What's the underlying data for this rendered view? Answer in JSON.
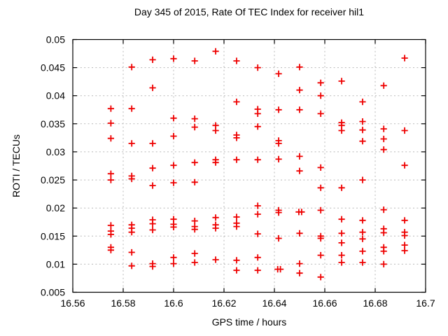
{
  "chart_data": {
    "type": "scatter",
    "title": "Day 345 of 2015, Rate Of TEC Index for receiver hil1",
    "xlabel": "GPS time / hours",
    "ylabel": "ROTI / TECUs",
    "xlim": [
      16.56,
      16.7
    ],
    "ylim": [
      0.005,
      0.05
    ],
    "grid": true,
    "legend": "none",
    "marker": "plus",
    "colors": {
      "marker": "#ee0000",
      "grid": "#b8b8b8",
      "axis": "#000000",
      "background": "#ffffff"
    },
    "xticks": [
      {
        "v": 16.56,
        "label": "16.56"
      },
      {
        "v": 16.58,
        "label": "16.58"
      },
      {
        "v": 16.6,
        "label": "16.6"
      },
      {
        "v": 16.62,
        "label": "16.62"
      },
      {
        "v": 16.64,
        "label": "16.64"
      },
      {
        "v": 16.66,
        "label": "16.66"
      },
      {
        "v": 16.68,
        "label": "16.68"
      },
      {
        "v": 16.7,
        "label": "16.7"
      }
    ],
    "yticks": [
      {
        "v": 0.005,
        "label": "0.005"
      },
      {
        "v": 0.01,
        "label": "0.01"
      },
      {
        "v": 0.015,
        "label": "0.015"
      },
      {
        "v": 0.02,
        "label": "0.02"
      },
      {
        "v": 0.025,
        "label": "0.025"
      },
      {
        "v": 0.03,
        "label": "0.03"
      },
      {
        "v": 0.035,
        "label": "0.035"
      },
      {
        "v": 0.04,
        "label": "0.04"
      },
      {
        "v": 0.045,
        "label": "0.045"
      },
      {
        "v": 0.05,
        "label": "0.05"
      }
    ],
    "series": [
      {
        "name": "ROTI",
        "points": [
          [
            16.5751,
            0.0377
          ],
          [
            16.5751,
            0.0351
          ],
          [
            16.5751,
            0.0324
          ],
          [
            16.5751,
            0.0261
          ],
          [
            16.5751,
            0.025
          ],
          [
            16.5751,
            0.0169
          ],
          [
            16.5751,
            0.0159
          ],
          [
            16.5751,
            0.0153
          ],
          [
            16.5751,
            0.013
          ],
          [
            16.5751,
            0.0125
          ],
          [
            16.5834,
            0.0451
          ],
          [
            16.5834,
            0.0377
          ],
          [
            16.5834,
            0.0315
          ],
          [
            16.5834,
            0.0257
          ],
          [
            16.5834,
            0.0252
          ],
          [
            16.5834,
            0.017
          ],
          [
            16.5834,
            0.0164
          ],
          [
            16.5834,
            0.0157
          ],
          [
            16.5834,
            0.0121
          ],
          [
            16.5834,
            0.0097
          ],
          [
            16.5917,
            0.0464
          ],
          [
            16.5917,
            0.0414
          ],
          [
            16.5917,
            0.0315
          ],
          [
            16.5917,
            0.0271
          ],
          [
            16.5917,
            0.024
          ],
          [
            16.5917,
            0.0179
          ],
          [
            16.5917,
            0.0172
          ],
          [
            16.5917,
            0.0161
          ],
          [
            16.5917,
            0.0101
          ],
          [
            16.5917,
            0.0096
          ],
          [
            16.6,
            0.0466
          ],
          [
            16.6,
            0.036
          ],
          [
            16.6,
            0.0328
          ],
          [
            16.6,
            0.0276
          ],
          [
            16.6,
            0.0245
          ],
          [
            16.6,
            0.018
          ],
          [
            16.6,
            0.0171
          ],
          [
            16.6,
            0.0166
          ],
          [
            16.6,
            0.0112
          ],
          [
            16.6,
            0.0101
          ],
          [
            16.6084,
            0.0462
          ],
          [
            16.6084,
            0.0359
          ],
          [
            16.6084,
            0.0344
          ],
          [
            16.6084,
            0.0281
          ],
          [
            16.6084,
            0.0246
          ],
          [
            16.6084,
            0.0177
          ],
          [
            16.6084,
            0.0167
          ],
          [
            16.6084,
            0.0162
          ],
          [
            16.6084,
            0.0119
          ],
          [
            16.6084,
            0.0103
          ],
          [
            16.6167,
            0.0479
          ],
          [
            16.6167,
            0.0347
          ],
          [
            16.6167,
            0.0338
          ],
          [
            16.6167,
            0.0286
          ],
          [
            16.6167,
            0.0281
          ],
          [
            16.6167,
            0.0183
          ],
          [
            16.6167,
            0.017
          ],
          [
            16.6167,
            0.0164
          ],
          [
            16.6167,
            0.0108
          ],
          [
            16.625,
            0.0462
          ],
          [
            16.625,
            0.0389
          ],
          [
            16.625,
            0.033
          ],
          [
            16.625,
            0.0325
          ],
          [
            16.625,
            0.0286
          ],
          [
            16.625,
            0.0184
          ],
          [
            16.625,
            0.0173
          ],
          [
            16.625,
            0.0167
          ],
          [
            16.625,
            0.0107
          ],
          [
            16.625,
            0.0089
          ],
          [
            16.6334,
            0.045
          ],
          [
            16.6334,
            0.0376
          ],
          [
            16.6334,
            0.0368
          ],
          [
            16.6334,
            0.0345
          ],
          [
            16.6334,
            0.0286
          ],
          [
            16.6334,
            0.0204
          ],
          [
            16.6334,
            0.0189
          ],
          [
            16.6334,
            0.0154
          ],
          [
            16.6334,
            0.0112
          ],
          [
            16.6334,
            0.0089
          ],
          [
            16.6417,
            0.0439
          ],
          [
            16.6417,
            0.0375
          ],
          [
            16.6417,
            0.032
          ],
          [
            16.6417,
            0.0315
          ],
          [
            16.6417,
            0.0287
          ],
          [
            16.6417,
            0.0196
          ],
          [
            16.6417,
            0.0192
          ],
          [
            16.6417,
            0.0146
          ],
          [
            16.6413,
            0.0091
          ],
          [
            16.6424,
            0.0091
          ],
          [
            16.65,
            0.0451
          ],
          [
            16.65,
            0.041
          ],
          [
            16.65,
            0.0375
          ],
          [
            16.65,
            0.0292
          ],
          [
            16.65,
            0.0266
          ],
          [
            16.6497,
            0.0193
          ],
          [
            16.6508,
            0.0193
          ],
          [
            16.65,
            0.0155
          ],
          [
            16.65,
            0.0101
          ],
          [
            16.65,
            0.0084
          ],
          [
            16.6584,
            0.0423
          ],
          [
            16.6584,
            0.04
          ],
          [
            16.6584,
            0.0368
          ],
          [
            16.6584,
            0.0272
          ],
          [
            16.6584,
            0.0236
          ],
          [
            16.6584,
            0.0196
          ],
          [
            16.6584,
            0.015
          ],
          [
            16.6584,
            0.0146
          ],
          [
            16.6584,
            0.0116
          ],
          [
            16.6584,
            0.0077
          ],
          [
            16.6667,
            0.0426
          ],
          [
            16.6667,
            0.0352
          ],
          [
            16.6667,
            0.0347
          ],
          [
            16.6667,
            0.0338
          ],
          [
            16.6667,
            0.0236
          ],
          [
            16.6667,
            0.018
          ],
          [
            16.6667,
            0.0155
          ],
          [
            16.6667,
            0.0138
          ],
          [
            16.6667,
            0.0116
          ],
          [
            16.6667,
            0.0103
          ],
          [
            16.675,
            0.0389
          ],
          [
            16.675,
            0.0354
          ],
          [
            16.675,
            0.0339
          ],
          [
            16.675,
            0.0319
          ],
          [
            16.675,
            0.025
          ],
          [
            16.675,
            0.0178
          ],
          [
            16.675,
            0.0157
          ],
          [
            16.675,
            0.0145
          ],
          [
            16.675,
            0.0123
          ],
          [
            16.675,
            0.0103
          ],
          [
            16.6834,
            0.0418
          ],
          [
            16.6834,
            0.0341
          ],
          [
            16.6834,
            0.0323
          ],
          [
            16.6834,
            0.0304
          ],
          [
            16.6834,
            0.0197
          ],
          [
            16.6834,
            0.0163
          ],
          [
            16.6834,
            0.0156
          ],
          [
            16.6834,
            0.013
          ],
          [
            16.6834,
            0.0123
          ],
          [
            16.6834,
            0.01
          ],
          [
            16.6917,
            0.0467
          ],
          [
            16.6917,
            0.0338
          ],
          [
            16.6917,
            0.0276
          ],
          [
            16.6917,
            0.0178
          ],
          [
            16.6917,
            0.0157
          ],
          [
            16.6917,
            0.0151
          ],
          [
            16.6917,
            0.0134
          ],
          [
            16.6917,
            0.0124
          ]
        ]
      }
    ]
  }
}
